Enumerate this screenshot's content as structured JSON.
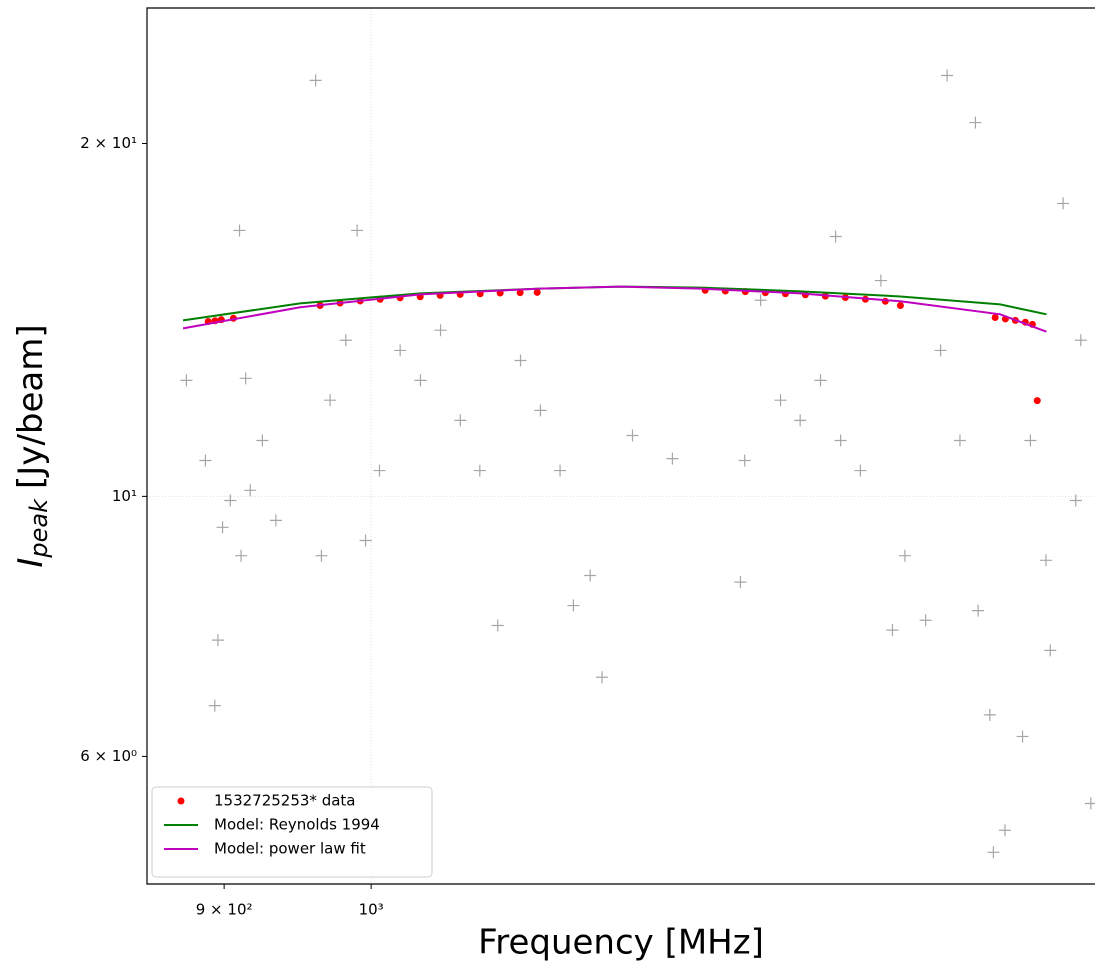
{
  "chart_data": {
    "type": "scatter",
    "xlabel": "Frequency [MHz]",
    "ylabel": {
      "main": "I",
      "sub": "peak",
      "unit": "[Jy/beam]"
    },
    "xscale": "log",
    "yscale": "log",
    "grid": true,
    "legend": "lower left",
    "xlim": [
      851.6,
      1680
    ],
    "ylim": [
      4.67,
      26.1
    ],
    "xticks": [
      {
        "value": 900,
        "label": "9 × 10²"
      },
      {
        "value": 1000,
        "label": "10³"
      }
    ],
    "yticks": [
      {
        "value": 6,
        "label": "6 × 10⁰"
      },
      {
        "value": 10,
        "label": "10¹"
      },
      {
        "value": 20,
        "label": "2 × 10¹"
      }
    ],
    "series": [
      {
        "kind": "cross",
        "color": "#808080",
        "x": [
          876,
          888,
          894,
          896,
          899,
          904,
          910,
          911,
          914,
          917,
          925,
          934,
          961,
          965,
          971,
          982,
          990,
          996,
          1006,
          1021,
          1036,
          1051,
          1066,
          1081,
          1095,
          1113,
          1129,
          1145,
          1156,
          1170,
          1180,
          1206,
          1241,
          1303,
          1307,
          1322,
          1341,
          1360,
          1380,
          1395,
          1400,
          1420,
          1441,
          1453,
          1466,
          1488,
          1504,
          1511,
          1525,
          1542,
          1545,
          1558,
          1562,
          1575,
          1595,
          1604,
          1627,
          1642,
          1657,
          1675,
          1663,
          1622
        ],
        "values": [
          12.56,
          10.73,
          6.63,
          7.54,
          9.41,
          9.92,
          16.86,
          8.9,
          12.61,
          10.12,
          11.16,
          9.54,
          22.64,
          8.9,
          12.08,
          13.59,
          16.86,
          9.17,
          10.52,
          13.32,
          12.56,
          13.86,
          11.61,
          10.52,
          7.76,
          13.06,
          11.84,
          10.52,
          8.07,
          8.56,
          7.01,
          11.27,
          10.77,
          8.45,
          10.73,
          14.7,
          12.08,
          11.61,
          12.56,
          16.66,
          11.16,
          10.52,
          15.28,
          7.69,
          8.9,
          7.84,
          13.32,
          22.86,
          11.16,
          20.84,
          7.99,
          6.51,
          4.97,
          5.19,
          6.24,
          11.16,
          7.39,
          17.78,
          9.92,
          5.47,
          13.59,
          8.82
        ]
      },
      {
        "kind": "dot",
        "name": "1532725253* data",
        "color": "#ff0000",
        "x": [
          889.8,
          894.2,
          898.2,
          906.0,
          964.1,
          978.0,
          992.2,
          1006.5,
          1021.0,
          1035.8,
          1050.7,
          1065.9,
          1081.3,
          1096.9,
          1112.7,
          1126.4,
          1270.5,
          1289,
          1307.6,
          1326.5,
          1345.7,
          1365.1,
          1384.8,
          1404.8,
          1425.1,
          1445.6,
          1461.3,
          1564,
          1575.5,
          1586.8,
          1598.2,
          1606.3,
          1611.9
        ],
        "values": [
          14.1,
          14.12,
          14.15,
          14.19,
          14.55,
          14.62,
          14.68,
          14.73,
          14.77,
          14.8,
          14.84,
          14.87,
          14.89,
          14.91,
          14.92,
          14.93,
          14.99,
          14.97,
          14.95,
          14.92,
          14.89,
          14.86,
          14.82,
          14.78,
          14.73,
          14.67,
          14.55,
          14.21,
          14.17,
          14.13,
          14.08,
          14.02,
          12.07
        ]
      },
      {
        "kind": "line",
        "name": "Model: Reynolds 1994",
        "color": "#008000",
        "x": [
          873.9,
          950.4,
          1035.8,
          1128.8,
          1195.5,
          1266.1,
          1360.2,
          1461.3,
          1569.6,
          1622.5
        ],
        "values": [
          14.13,
          14.61,
          14.9,
          15.04,
          15.1,
          15.07,
          14.96,
          14.81,
          14.58,
          14.3
        ]
      },
      {
        "kind": "line",
        "name": "Model: power law fit",
        "color": "#bf00bf",
        "x": [
          873.9,
          950.4,
          1035.8,
          1128.8,
          1195.5,
          1266.1,
          1360.2,
          1461.3,
          1569.6,
          1622.5
        ],
        "values": [
          13.91,
          14.5,
          14.87,
          15.04,
          15.1,
          15.04,
          14.9,
          14.67,
          14.3,
          13.82
        ]
      }
    ]
  }
}
